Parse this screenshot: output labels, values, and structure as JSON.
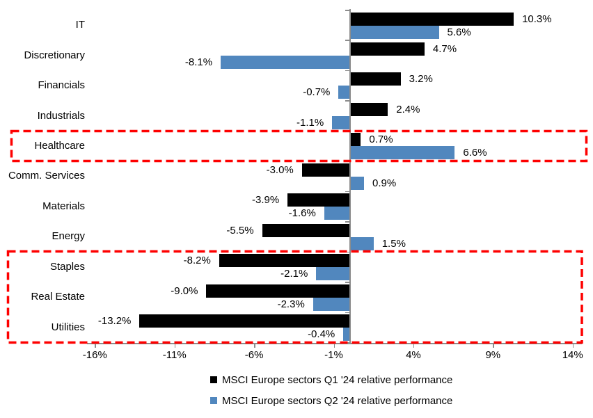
{
  "chart_data": {
    "type": "bar",
    "orientation": "horizontal",
    "title": "",
    "categories": [
      "IT",
      "Discretionary",
      "Financials",
      "Industrials",
      "Healthcare",
      "Comm. Services",
      "Materials",
      "Energy",
      "Staples",
      "Real Estate",
      "Utilities"
    ],
    "series": [
      {
        "name": "MSCI Europe sectors Q1 '24 relative performance",
        "color": "#000000",
        "values": [
          10.3,
          4.7,
          3.2,
          2.4,
          0.7,
          -3.0,
          -3.9,
          -5.5,
          -8.2,
          -9.0,
          -13.2
        ],
        "labels": [
          "10.3%",
          "4.7%",
          "3.2%",
          "2.4%",
          "0.7%",
          "-3.0%",
          "-3.9%",
          "-5.5%",
          "-8.2%",
          "-9.0%",
          "-13.2%"
        ]
      },
      {
        "name": "MSCI Europe sectors Q2 '24 relative performance",
        "color": "#5187be",
        "values": [
          5.6,
          -8.1,
          -0.7,
          -1.1,
          6.6,
          0.9,
          -1.6,
          1.5,
          -2.1,
          -2.3,
          -0.4
        ],
        "labels": [
          "5.6%",
          "-8.1%",
          "-0.7%",
          "-1.1%",
          "6.6%",
          "0.9%",
          "-1.6%",
          "1.5%",
          "-2.1%",
          "-2.3%",
          "-0.4%"
        ]
      }
    ],
    "x_axis": {
      "tick_labels": [
        "-16%",
        "-11%",
        "-6%",
        "-1%",
        "4%",
        "9%",
        "14%"
      ],
      "tick_values": [
        -16,
        -11,
        -6,
        -1,
        4,
        9,
        14
      ],
      "min": -16.5,
      "max": 14.6,
      "unit": "%"
    },
    "grid": "off",
    "legend_position": "bottom",
    "data_labels": "outside-end",
    "highlight_color": "#fe0000",
    "highlights": [
      {
        "categories": [
          "Healthcare"
        ]
      },
      {
        "categories": [
          "Staples",
          "Real Estate",
          "Utilities"
        ]
      }
    ]
  }
}
